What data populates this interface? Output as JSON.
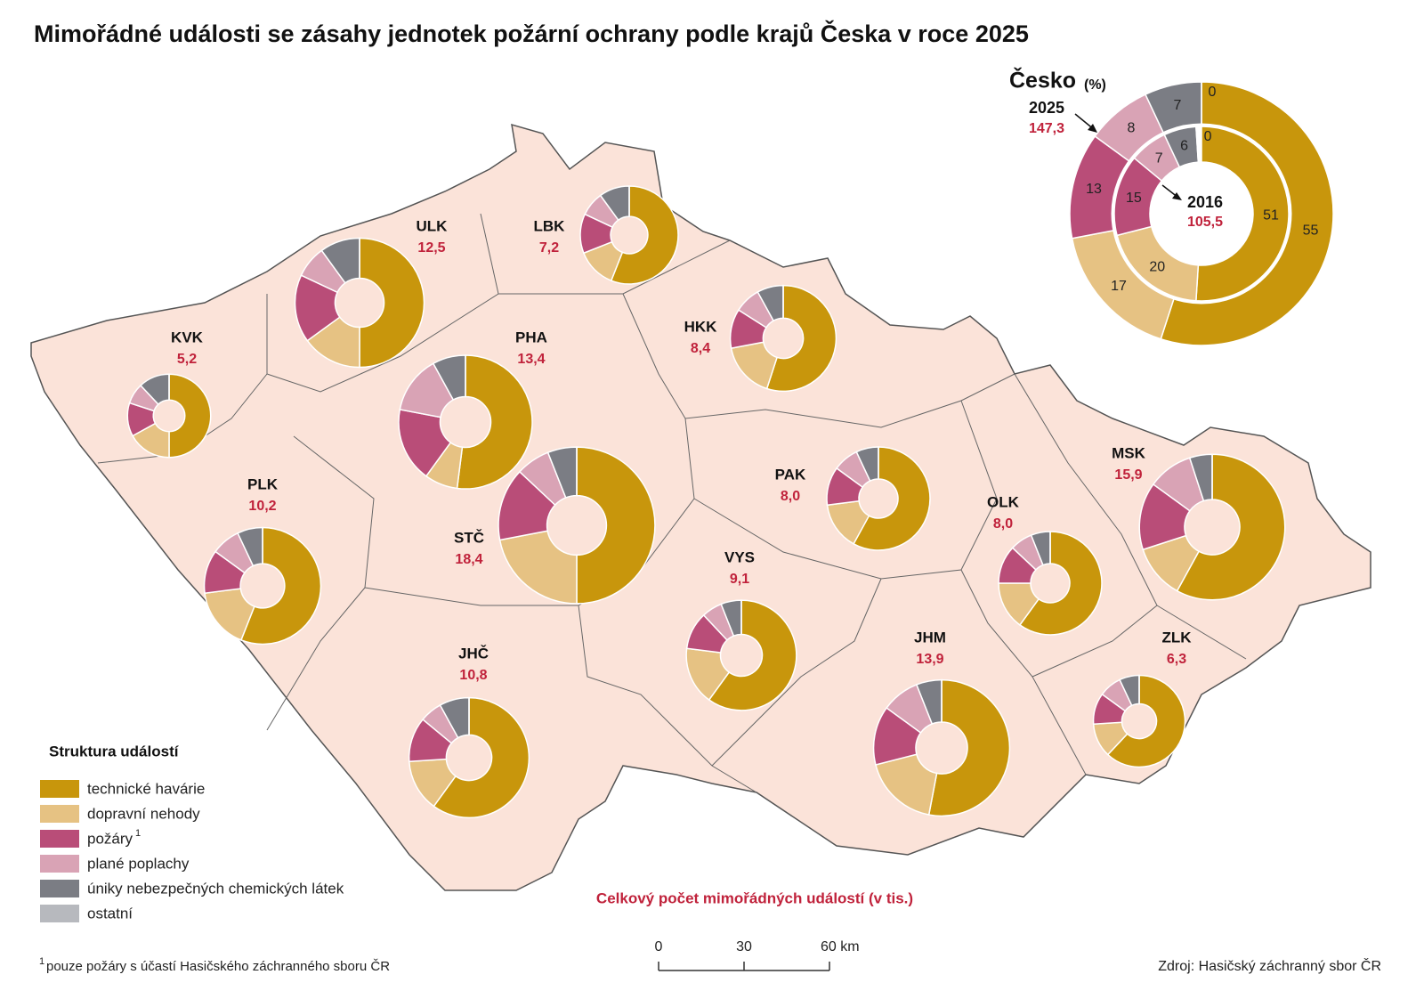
{
  "title": "Mimořádné události se zásahy jednotek požární ochrany podle krajů Česka v roce 2025",
  "legend": {
    "title": "Struktura událostí",
    "items": [
      {
        "label": "technické havárie",
        "color": "#c8960c"
      },
      {
        "label": "dopravní nehody",
        "color": "#e6c283"
      },
      {
        "label": "požáry",
        "note": "1",
        "color": "#b94d78"
      },
      {
        "label": "plané poplachy",
        "color": "#d9a3b5"
      },
      {
        "label": "úniky nebezpečných chemických látek",
        "color": "#7b7d84"
      },
      {
        "label": "ostatní",
        "color": "#b7b9be"
      }
    ]
  },
  "czechia": {
    "label": "Česko",
    "unit": "(%)",
    "years": [
      {
        "year": 2025,
        "total": 147.3,
        "total_label": "147,3",
        "shares": [
          55,
          17,
          13,
          8,
          7,
          0
        ]
      },
      {
        "year": 2016,
        "total": 105.5,
        "total_label": "105,5",
        "shares": [
          51,
          20,
          15,
          7,
          6,
          0
        ]
      }
    ]
  },
  "regions": [
    {
      "code": "KVK",
      "total": 5.2,
      "total_label": "5,2",
      "shares": [
        50,
        17,
        13,
        8,
        12,
        0
      ]
    },
    {
      "code": "ULK",
      "total": 12.5,
      "total_label": "12,5",
      "shares": [
        50,
        15,
        17,
        8,
        10,
        0
      ]
    },
    {
      "code": "LBK",
      "total": 7.2,
      "total_label": "7,2",
      "shares": [
        56,
        13,
        13,
        8,
        10,
        0
      ]
    },
    {
      "code": "PHA",
      "total": 13.4,
      "total_label": "13,4",
      "shares": [
        52,
        8,
        18,
        14,
        8,
        0
      ]
    },
    {
      "code": "HKK",
      "total": 8.4,
      "total_label": "8,4",
      "shares": [
        55,
        17,
        12,
        8,
        8,
        0
      ]
    },
    {
      "code": "STČ",
      "total": 18.4,
      "total_label": "18,4",
      "shares": [
        50,
        22,
        15,
        7,
        6,
        0
      ]
    },
    {
      "code": "PLK",
      "total": 10.2,
      "total_label": "10,2",
      "shares": [
        56,
        17,
        12,
        8,
        7,
        0
      ]
    },
    {
      "code": "PAK",
      "total": 8.0,
      "total_label": "8,0",
      "shares": [
        58,
        15,
        12,
        8,
        7,
        0
      ]
    },
    {
      "code": "VYS",
      "total": 9.1,
      "total_label": "9,1",
      "shares": [
        60,
        17,
        11,
        6,
        6,
        0
      ]
    },
    {
      "code": "OLK",
      "total": 8.0,
      "total_label": "8,0",
      "shares": [
        60,
        15,
        12,
        7,
        6,
        0
      ]
    },
    {
      "code": "MSK",
      "total": 15.9,
      "total_label": "15,9",
      "shares": [
        58,
        12,
        15,
        10,
        5,
        0
      ]
    },
    {
      "code": "JHČ",
      "total": 10.8,
      "total_label": "10,8",
      "shares": [
        60,
        14,
        12,
        6,
        8,
        0
      ]
    },
    {
      "code": "JHM",
      "total": 13.9,
      "total_label": "13,9",
      "shares": [
        53,
        18,
        14,
        9,
        6,
        0
      ]
    },
    {
      "code": "ZLK",
      "total": 6.3,
      "total_label": "6,3",
      "shares": [
        62,
        12,
        11,
        8,
        7,
        0
      ]
    }
  ],
  "total_caption": "Celkový počet mimořádných událostí (v tis.)",
  "scale": {
    "ticks": [
      0,
      30,
      {
        "value": 60,
        "label": "60 km"
      }
    ]
  },
  "footnote": {
    "mark": "1",
    "text": "pouze požáry s účastí Hasičského záchranného sboru ČR"
  },
  "source": "Zdroj: Hasičský záchranný sbor ČR"
}
